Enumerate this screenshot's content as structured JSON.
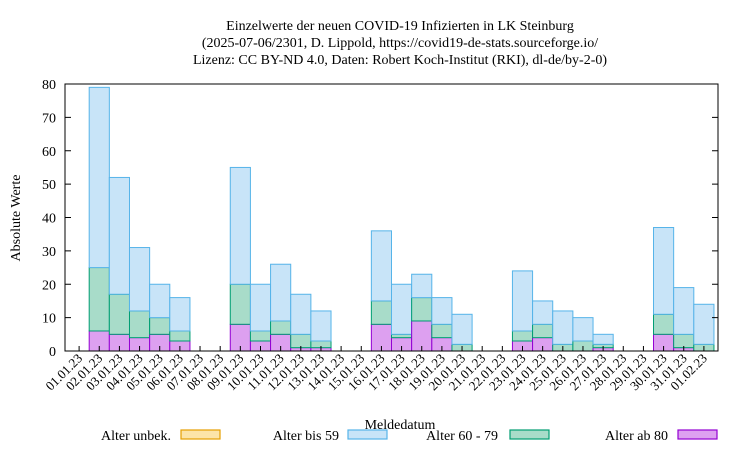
{
  "chart_data": {
    "type": "bar",
    "stacked": true,
    "title_lines": [
      "Einzelwerte der neuen COVID-19 Infizierten in LK Steinburg",
      "(2025-07-06/2301, D. Lippold, https://covid19-de-stats.sourceforge.io/",
      "Lizenz: CC BY-ND 4.0, Daten: Robert Koch-Institut (RKI), dl-de/by-2-0)"
    ],
    "xlabel": "Meldedatum",
    "ylabel": "Absolute Werte",
    "ylim": [
      0,
      80
    ],
    "yticks": [
      "0",
      "10",
      "20",
      "30",
      "40",
      "50",
      "60",
      "70",
      "80"
    ],
    "grid": false,
    "legend_position": "bottom",
    "categories": [
      "01.01.23",
      "02.01.23",
      "03.01.23",
      "04.01.23",
      "05.01.23",
      "06.01.23",
      "07.01.23",
      "08.01.23",
      "09.01.23",
      "10.01.23",
      "11.01.23",
      "12.01.23",
      "13.01.23",
      "14.01.23",
      "15.01.23",
      "16.01.23",
      "17.01.23",
      "18.01.23",
      "19.01.23",
      "20.01.23",
      "21.01.23",
      "22.01.23",
      "23.01.23",
      "24.01.23",
      "25.01.23",
      "26.01.23",
      "27.01.23",
      "28.01.23",
      "29.01.23",
      "30.01.23",
      "31.01.23",
      "01.02.23"
    ],
    "series": [
      {
        "name": "Alter ab 80",
        "fill": "#dda0f0",
        "stroke": "#9400d3",
        "values": [
          0,
          6,
          5,
          4,
          5,
          3,
          0,
          0,
          8,
          3,
          5,
          1,
          1,
          0,
          0,
          8,
          4,
          9,
          4,
          0,
          0,
          0,
          3,
          4,
          0,
          0,
          1,
          0,
          0,
          5,
          1,
          0
        ]
      },
      {
        "name": "Alter 60 - 79",
        "fill": "#a8dcc9",
        "stroke": "#009e73",
        "values": [
          0,
          19,
          12,
          8,
          5,
          3,
          0,
          0,
          12,
          3,
          4,
          4,
          2,
          0,
          0,
          7,
          1,
          7,
          4,
          2,
          0,
          0,
          3,
          4,
          2,
          3,
          1,
          0,
          0,
          6,
          4,
          2
        ]
      },
      {
        "name": "Alter bis 59",
        "fill": "#c8e4f8",
        "stroke": "#56b4e9",
        "values": [
          0,
          54,
          35,
          19,
          10,
          10,
          0,
          0,
          35,
          14,
          17,
          12,
          9,
          0,
          0,
          21,
          15,
          7,
          8,
          9,
          0,
          0,
          18,
          7,
          10,
          7,
          3,
          0,
          0,
          26,
          14,
          12
        ]
      },
      {
        "name": "Alter unbek.",
        "fill": "#fce4a8",
        "stroke": "#e69f00",
        "values": [
          0,
          0,
          0,
          0,
          0,
          0,
          0,
          0,
          0,
          0,
          0,
          0,
          0,
          0,
          0,
          0,
          0,
          0,
          0,
          0,
          0,
          0,
          0,
          0,
          0,
          0,
          0,
          0,
          0,
          0,
          0,
          0
        ]
      }
    ],
    "legend_order": [
      "Alter unbek.",
      "Alter bis 59",
      "Alter 60 - 79",
      "Alter ab 80"
    ]
  }
}
